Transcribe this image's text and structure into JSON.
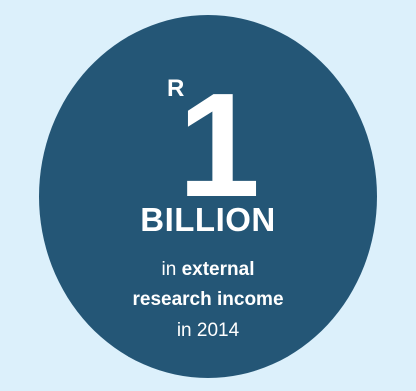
{
  "stat": {
    "currency": "R",
    "number": "1",
    "unit": "BILLION",
    "line1_prefix": "in",
    "line1_bold": "external",
    "line2_bold": "research income",
    "line3": "in 2014"
  },
  "colors": {
    "background": "#dcf0fb",
    "circle": "#245676",
    "text": "#ffffff"
  }
}
